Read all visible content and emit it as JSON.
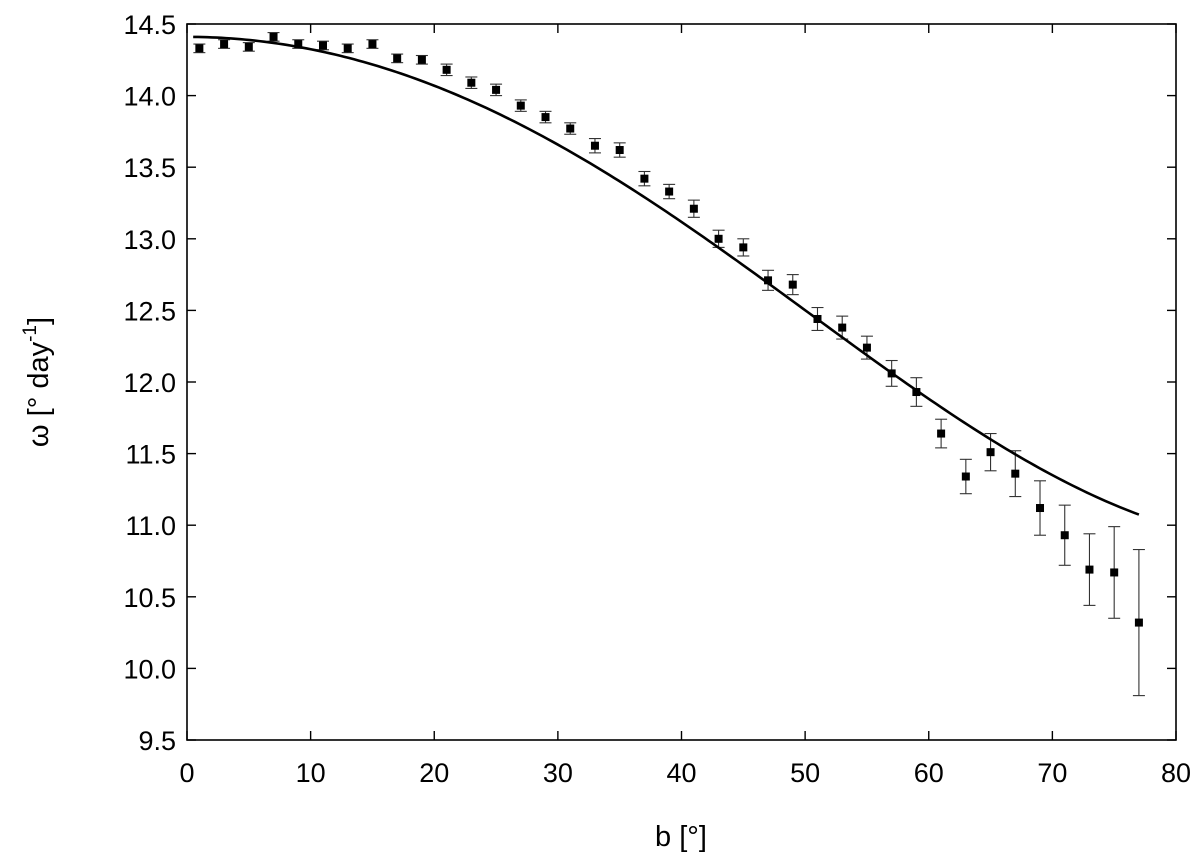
{
  "chart_data": {
    "type": "scatter",
    "xlabel": "b [°]",
    "ylabel_main": "ω [° day",
    "ylabel_sup": "-1",
    "ylabel_close": "]",
    "xlim": [
      0,
      80
    ],
    "ylim": [
      9.5,
      14.5
    ],
    "x_ticks": [
      0,
      10,
      20,
      30,
      40,
      50,
      60,
      70,
      80
    ],
    "x_tick_labels": [
      "0",
      "10",
      "20",
      "30",
      "40",
      "50",
      "60",
      "70",
      "80"
    ],
    "y_ticks": [
      9.5,
      10.0,
      10.5,
      11.0,
      11.5,
      12.0,
      12.5,
      13.0,
      13.5,
      14.0,
      14.5
    ],
    "y_tick_labels": [
      "9.5",
      "10.0",
      "10.5",
      "11.0",
      "11.5",
      "12.0",
      "12.5",
      "13.0",
      "13.5",
      "14.0",
      "14.5"
    ],
    "grid": false,
    "series": [
      {
        "kind": "points-with-errorbars",
        "x": [
          1,
          3,
          5,
          7,
          9,
          11,
          13,
          15,
          17,
          19,
          21,
          23,
          25,
          27,
          29,
          31,
          33,
          35,
          37,
          39,
          41,
          43,
          45,
          47,
          49,
          51,
          53,
          55,
          57,
          59,
          61,
          63,
          65,
          67,
          69,
          71,
          73,
          75,
          77
        ],
        "y": [
          14.33,
          14.36,
          14.34,
          14.41,
          14.36,
          14.35,
          14.33,
          14.36,
          14.26,
          14.25,
          14.18,
          14.09,
          14.04,
          13.93,
          13.85,
          13.77,
          13.65,
          13.62,
          13.42,
          13.33,
          13.21,
          13.0,
          12.94,
          12.71,
          12.68,
          12.44,
          12.38,
          12.24,
          12.06,
          11.93,
          11.64,
          11.34,
          11.51,
          11.36,
          11.12,
          10.93,
          10.69,
          10.67,
          10.32
        ],
        "err": [
          0.03,
          0.03,
          0.03,
          0.03,
          0.03,
          0.03,
          0.03,
          0.03,
          0.03,
          0.03,
          0.04,
          0.04,
          0.04,
          0.04,
          0.04,
          0.04,
          0.05,
          0.05,
          0.05,
          0.05,
          0.06,
          0.06,
          0.06,
          0.07,
          0.07,
          0.08,
          0.08,
          0.08,
          0.09,
          0.1,
          0.1,
          0.12,
          0.13,
          0.16,
          0.19,
          0.21,
          0.25,
          0.32,
          0.51
        ],
        "color": "#000000"
      },
      {
        "kind": "fit-curve",
        "model": "A + B*sin^2(b) + C*sin^4(b)",
        "coefficients": [
          14.41,
          -2.83,
          -0.72
        ],
        "x_range": [
          0.5,
          77
        ],
        "color": "#000000"
      }
    ]
  }
}
